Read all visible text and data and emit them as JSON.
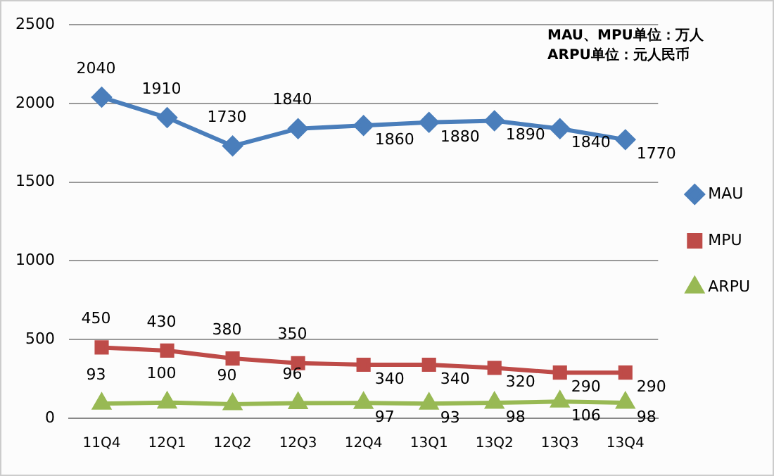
{
  "chart_data": {
    "type": "line",
    "categories": [
      "11Q4",
      "12Q1",
      "12Q2",
      "12Q3",
      "12Q4",
      "13Q1",
      "13Q2",
      "13Q3",
      "13Q4"
    ],
    "series": [
      {
        "name": "MAU",
        "color": "#4a7ebb",
        "marker": "diamond",
        "values": [
          2040,
          1910,
          1730,
          1840,
          1860,
          1880,
          1890,
          1840,
          1770
        ]
      },
      {
        "name": "MPU",
        "color": "#be4b48",
        "marker": "square",
        "values": [
          450,
          430,
          380,
          350,
          340,
          340,
          320,
          290,
          290
        ]
      },
      {
        "name": "ARPU",
        "color": "#98b954",
        "marker": "triangle",
        "values": [
          93,
          100,
          90,
          96,
          97,
          93,
          98,
          106,
          98
        ]
      }
    ],
    "ylim": [
      0,
      2500
    ],
    "yticks": [
      0,
      500,
      1000,
      1500,
      2000,
      2500
    ],
    "grid": "y",
    "legend": "right",
    "data_labels": true,
    "annotations": [
      "MAU、MPU单位：万人",
      "ARPU单位：元人民币"
    ]
  }
}
